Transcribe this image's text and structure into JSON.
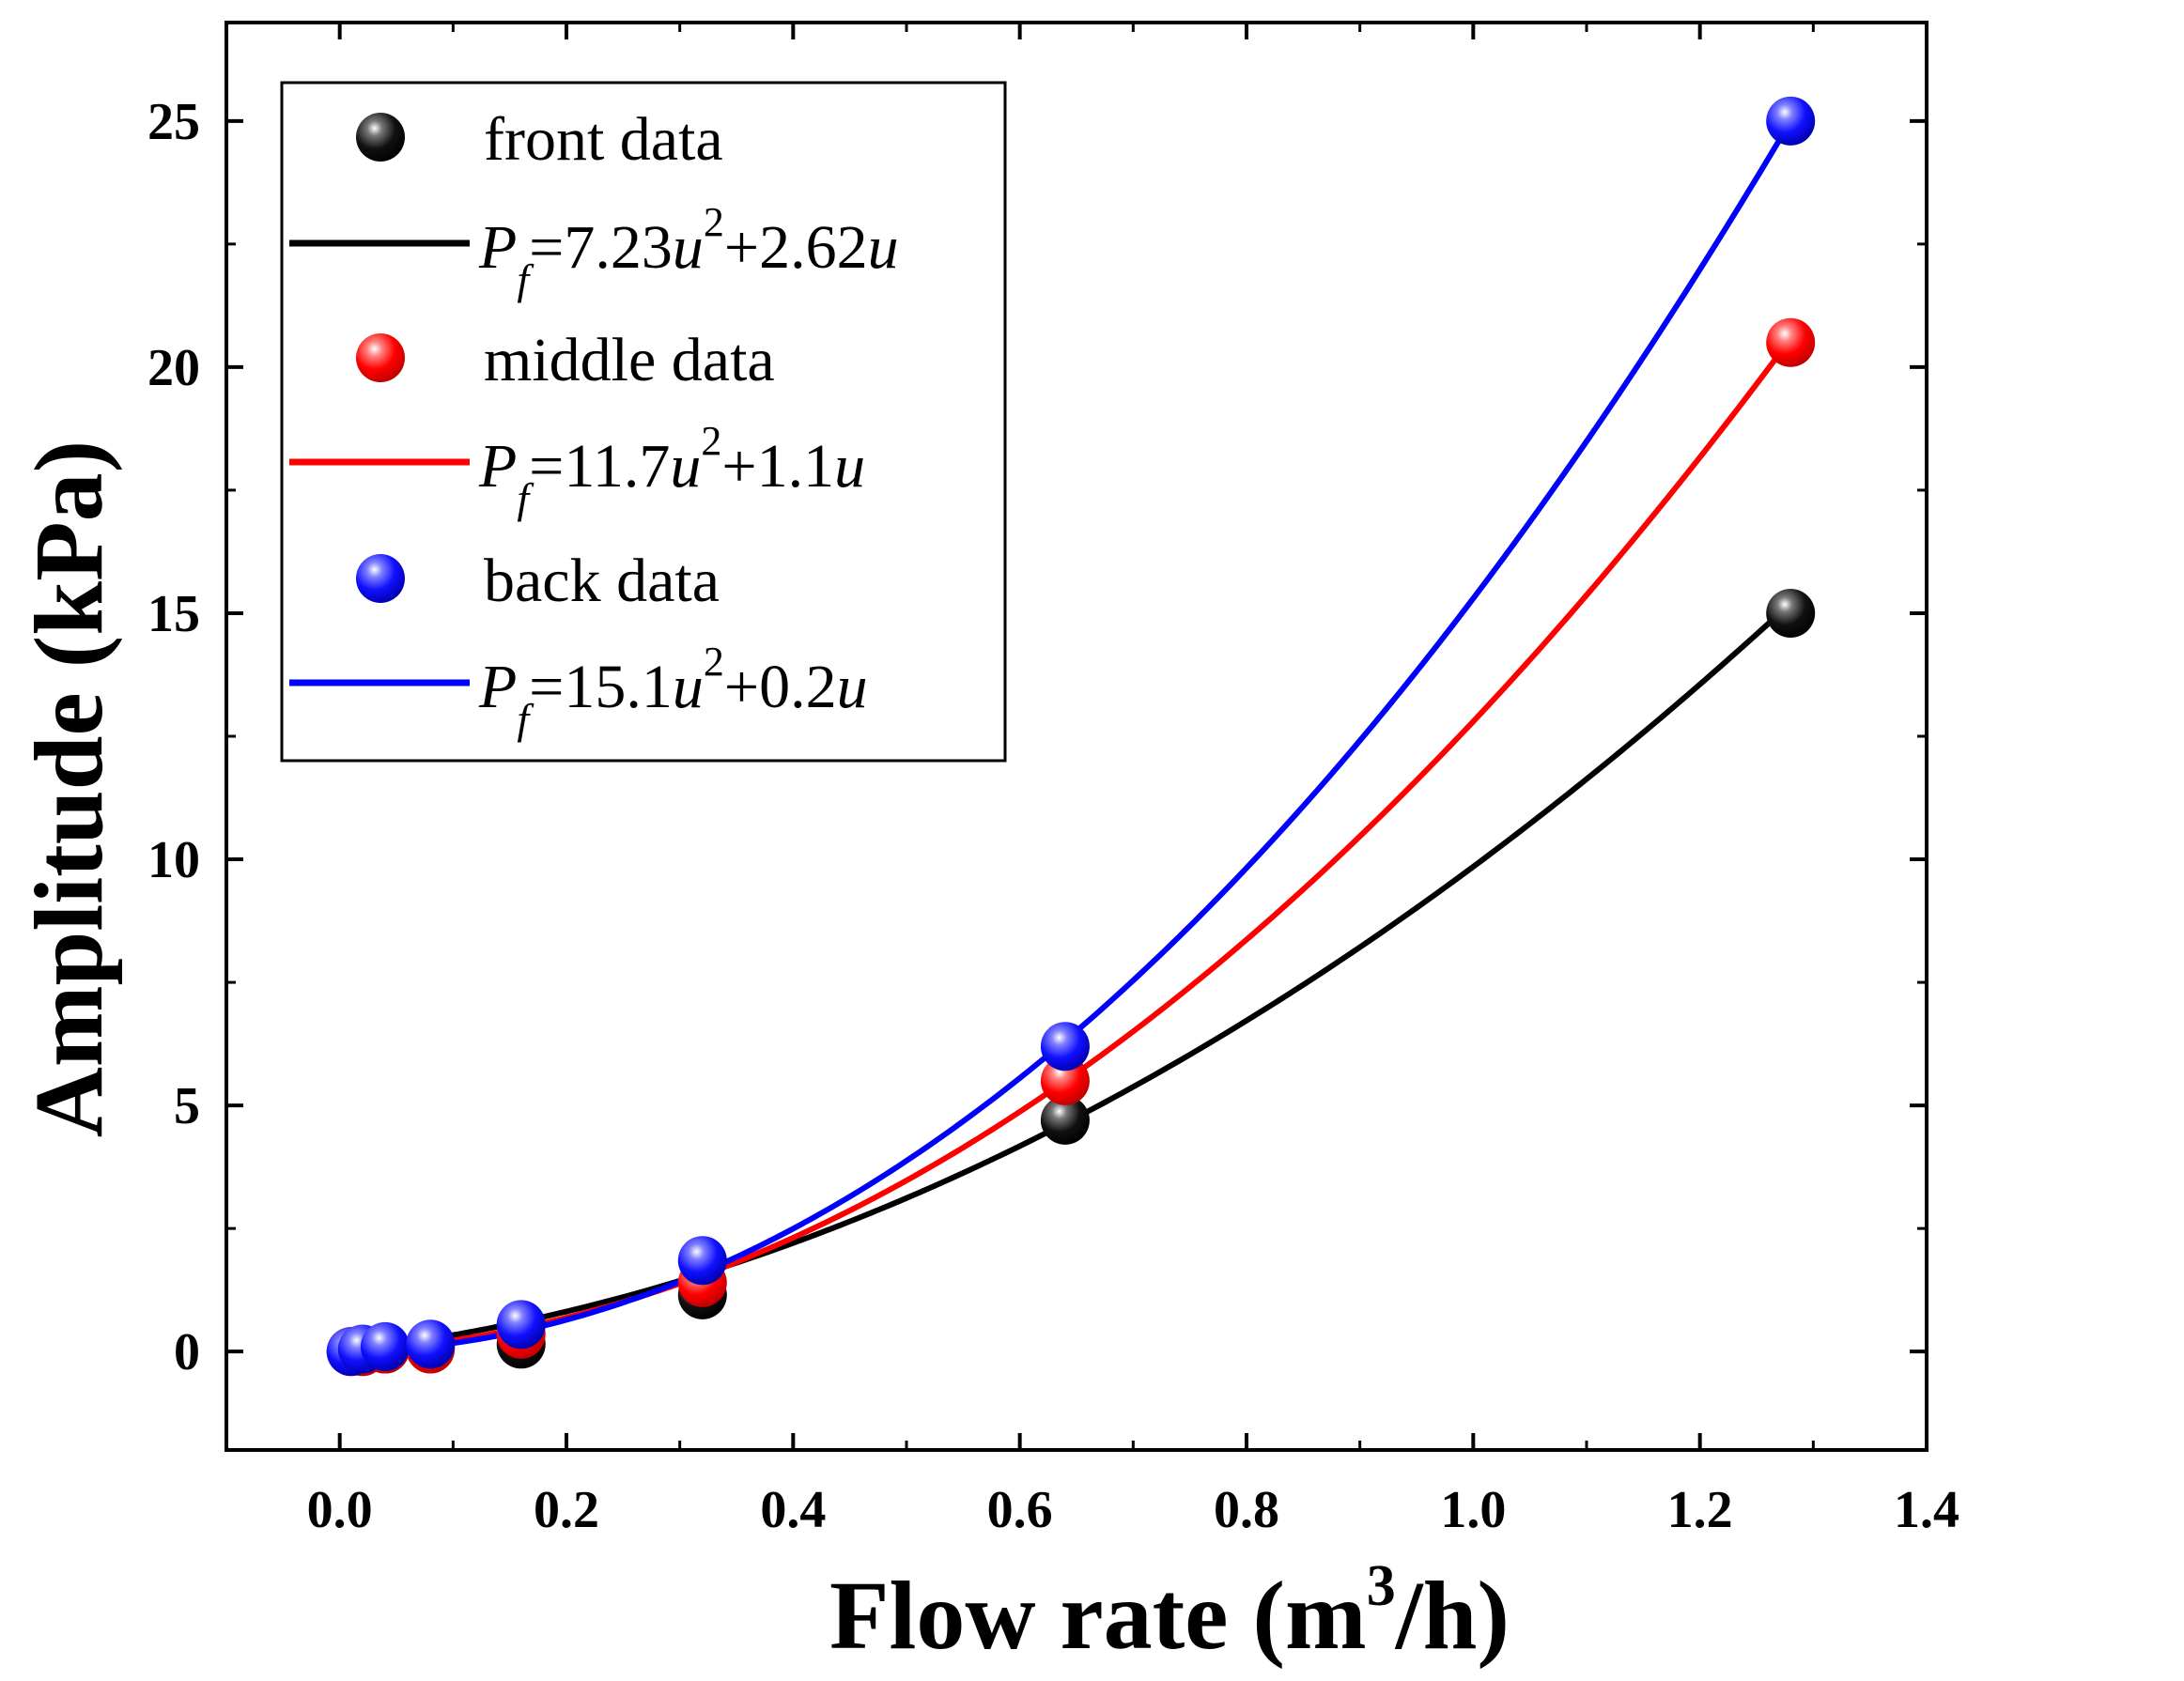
{
  "chart_data": {
    "type": "scatter",
    "xlabel": "Flow rate (m",
    "xlabel_sup": "3",
    "xlabel_tail": "/h)",
    "ylabel": "Amplitude (kPa)",
    "xlim": [
      -0.1,
      1.4
    ],
    "ylim": [
      -2,
      27
    ],
    "xticks": [
      0.0,
      0.2,
      0.4,
      0.6,
      0.8,
      1.0,
      1.2,
      1.4
    ],
    "xtick_labels": [
      "0.0",
      "0.2",
      "0.4",
      "0.6",
      "0.8",
      "1.0",
      "1.2",
      "1.4"
    ],
    "yticks": [
      0,
      5,
      10,
      15,
      20,
      25
    ],
    "ytick_labels": [
      "0",
      "5",
      "10",
      "15",
      "20",
      "25"
    ],
    "legend_position": "top-left",
    "series": [
      {
        "name": "front data",
        "color": "#000000",
        "x": [
          0.01,
          0.02,
          0.04,
          0.08,
          0.16,
          0.32,
          0.64,
          1.28
        ],
        "y": [
          0.0,
          0.0,
          0.05,
          0.1,
          0.15,
          1.15,
          4.7,
          15.0
        ],
        "fit": {
          "a": 7.23,
          "b": 2.62
        },
        "fit_label_pre": "P",
        "fit_label_sub": "f",
        "fit_label_mid": "=7.23",
        "fit_label_var": "u",
        "fit_label_sup": "2",
        "fit_label_post": "+2.62",
        "fit_label_var2": "u"
      },
      {
        "name": "middle data",
        "color": "#ff0000",
        "x": [
          0.01,
          0.02,
          0.04,
          0.08,
          0.16,
          0.32,
          0.64,
          1.28
        ],
        "y": [
          0.0,
          0.0,
          0.05,
          0.05,
          0.35,
          1.4,
          5.5,
          20.5
        ],
        "fit": {
          "a": 11.7,
          "b": 1.1
        },
        "fit_label_pre": "P",
        "fit_label_sub": "f",
        "fit_label_mid": "=11.7",
        "fit_label_var": "u",
        "fit_label_sup": "2",
        "fit_label_post": "+1.1",
        "fit_label_var2": "u"
      },
      {
        "name": "back data",
        "color": "#0000ff",
        "x": [
          0.01,
          0.02,
          0.04,
          0.08,
          0.16,
          0.32,
          0.64,
          1.28
        ],
        "y": [
          0.0,
          0.05,
          0.1,
          0.15,
          0.55,
          1.85,
          6.2,
          25.0
        ],
        "fit": {
          "a": 15.1,
          "b": 0.2
        },
        "fit_label_pre": "P",
        "fit_label_sub": "f",
        "fit_label_mid": "=15.1",
        "fit_label_var": "u",
        "fit_label_sup": "2",
        "fit_label_post": "+0.2",
        "fit_label_var2": "u"
      }
    ]
  }
}
